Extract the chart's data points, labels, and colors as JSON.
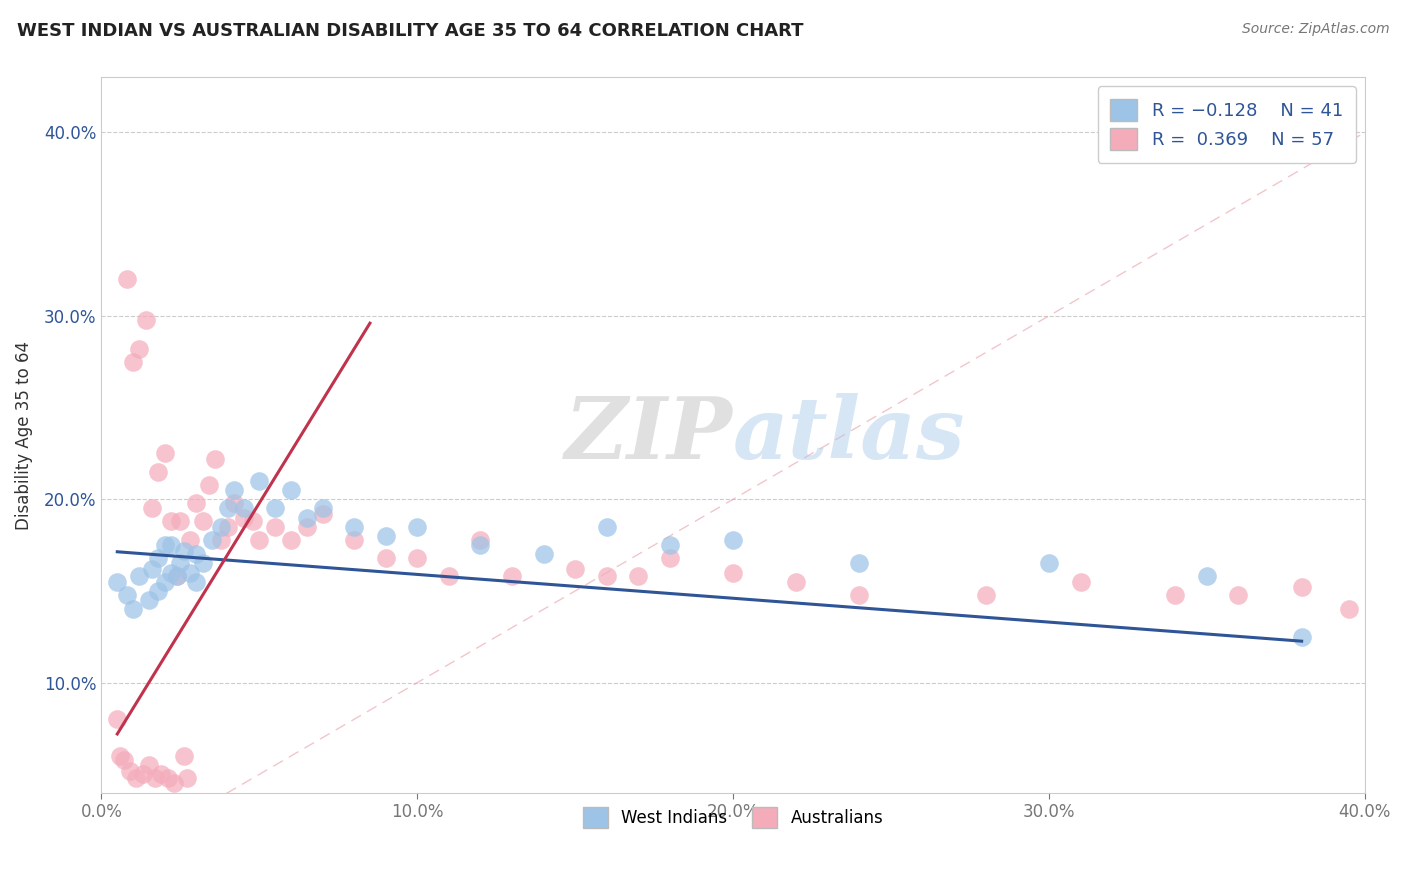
{
  "title": "WEST INDIAN VS AUSTRALIAN DISABILITY AGE 35 TO 64 CORRELATION CHART",
  "source_text": "Source: ZipAtlas.com",
  "ylabel": "Disability Age 35 to 64",
  "xlim": [
    0.0,
    0.4
  ],
  "ylim": [
    0.04,
    0.43
  ],
  "xticks": [
    0.0,
    0.1,
    0.2,
    0.3,
    0.4
  ],
  "yticks": [
    0.1,
    0.2,
    0.3,
    0.4
  ],
  "xtick_labels": [
    "0.0%",
    "10.0%",
    "20.0%",
    "30.0%",
    "40.0%"
  ],
  "ytick_labels": [
    "10.0%",
    "20.0%",
    "30.0%",
    "40.0%"
  ],
  "watermark_zip": "ZIP",
  "watermark_atlas": "atlas",
  "color_blue": "#9DC3E6",
  "color_pink": "#F4ACBB",
  "line_blue": "#2F5597",
  "line_pink": "#C0334D",
  "diag_color": "#E8A0A8",
  "background_color": "#FFFFFF",
  "west_indian_x": [
    0.005,
    0.008,
    0.01,
    0.012,
    0.015,
    0.016,
    0.018,
    0.018,
    0.02,
    0.02,
    0.022,
    0.022,
    0.024,
    0.025,
    0.026,
    0.028,
    0.03,
    0.03,
    0.032,
    0.035,
    0.038,
    0.04,
    0.042,
    0.045,
    0.05,
    0.055,
    0.06,
    0.065,
    0.07,
    0.08,
    0.09,
    0.1,
    0.12,
    0.14,
    0.16,
    0.18,
    0.2,
    0.24,
    0.3,
    0.35,
    0.38
  ],
  "west_indian_y": [
    0.155,
    0.148,
    0.14,
    0.158,
    0.145,
    0.162,
    0.15,
    0.168,
    0.175,
    0.155,
    0.16,
    0.175,
    0.158,
    0.165,
    0.172,
    0.16,
    0.17,
    0.155,
    0.165,
    0.178,
    0.185,
    0.195,
    0.205,
    0.195,
    0.21,
    0.195,
    0.205,
    0.19,
    0.195,
    0.185,
    0.18,
    0.185,
    0.175,
    0.17,
    0.185,
    0.175,
    0.178,
    0.165,
    0.165,
    0.158,
    0.125
  ],
  "australian_x": [
    0.005,
    0.006,
    0.007,
    0.008,
    0.009,
    0.01,
    0.011,
    0.012,
    0.013,
    0.014,
    0.015,
    0.016,
    0.017,
    0.018,
    0.019,
    0.02,
    0.021,
    0.022,
    0.023,
    0.024,
    0.025,
    0.026,
    0.027,
    0.028,
    0.03,
    0.032,
    0.034,
    0.036,
    0.038,
    0.04,
    0.042,
    0.045,
    0.048,
    0.05,
    0.055,
    0.06,
    0.065,
    0.07,
    0.08,
    0.09,
    0.1,
    0.11,
    0.12,
    0.13,
    0.15,
    0.16,
    0.17,
    0.18,
    0.2,
    0.22,
    0.24,
    0.28,
    0.31,
    0.34,
    0.36,
    0.38,
    0.395
  ],
  "australian_y": [
    0.08,
    0.06,
    0.058,
    0.32,
    0.052,
    0.275,
    0.048,
    0.282,
    0.05,
    0.298,
    0.055,
    0.195,
    0.048,
    0.215,
    0.05,
    0.225,
    0.048,
    0.188,
    0.045,
    0.158,
    0.188,
    0.06,
    0.048,
    0.178,
    0.198,
    0.188,
    0.208,
    0.222,
    0.178,
    0.185,
    0.198,
    0.19,
    0.188,
    0.178,
    0.185,
    0.178,
    0.185,
    0.192,
    0.178,
    0.168,
    0.168,
    0.158,
    0.178,
    0.158,
    0.162,
    0.158,
    0.158,
    0.168,
    0.16,
    0.155,
    0.148,
    0.148,
    0.155,
    0.148,
    0.148,
    0.152,
    0.14
  ]
}
